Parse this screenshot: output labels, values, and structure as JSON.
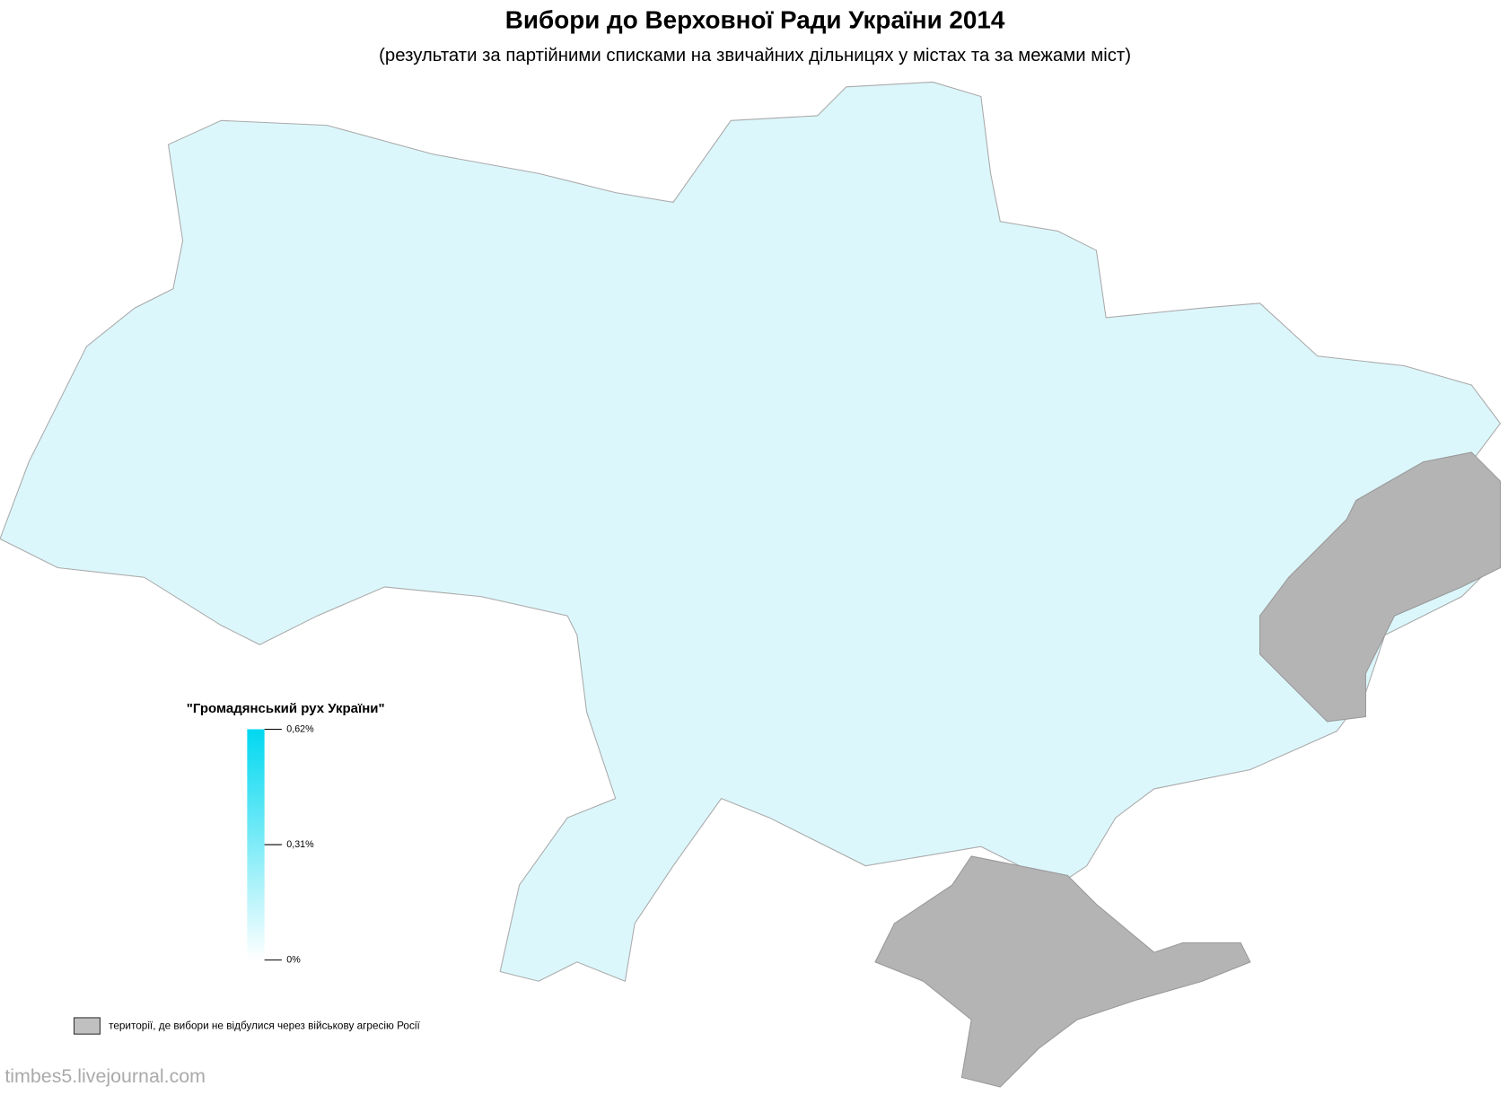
{
  "title": "Вибори до Верховної Ради України 2014",
  "subtitle": "(результати за партійними списками на звичайних дільницях у містах та за межами міст)",
  "legend": {
    "title": "\"Громадянський рух України\"",
    "range": [
      0,
      0.62
    ],
    "colors": [
      "#ffffff",
      "#00d8f0"
    ],
    "ticks": [
      {
        "value": 0.62,
        "label": "0,62%"
      },
      {
        "value": 0.31,
        "label": "0,31%"
      },
      {
        "value": 0,
        "label": "0%"
      }
    ]
  },
  "legend_note": {
    "color": "#c0c0c0",
    "label": "території, де вибори не відбулися через військову агресію Росії"
  },
  "watermark": "timbes5.livejournal.com"
}
